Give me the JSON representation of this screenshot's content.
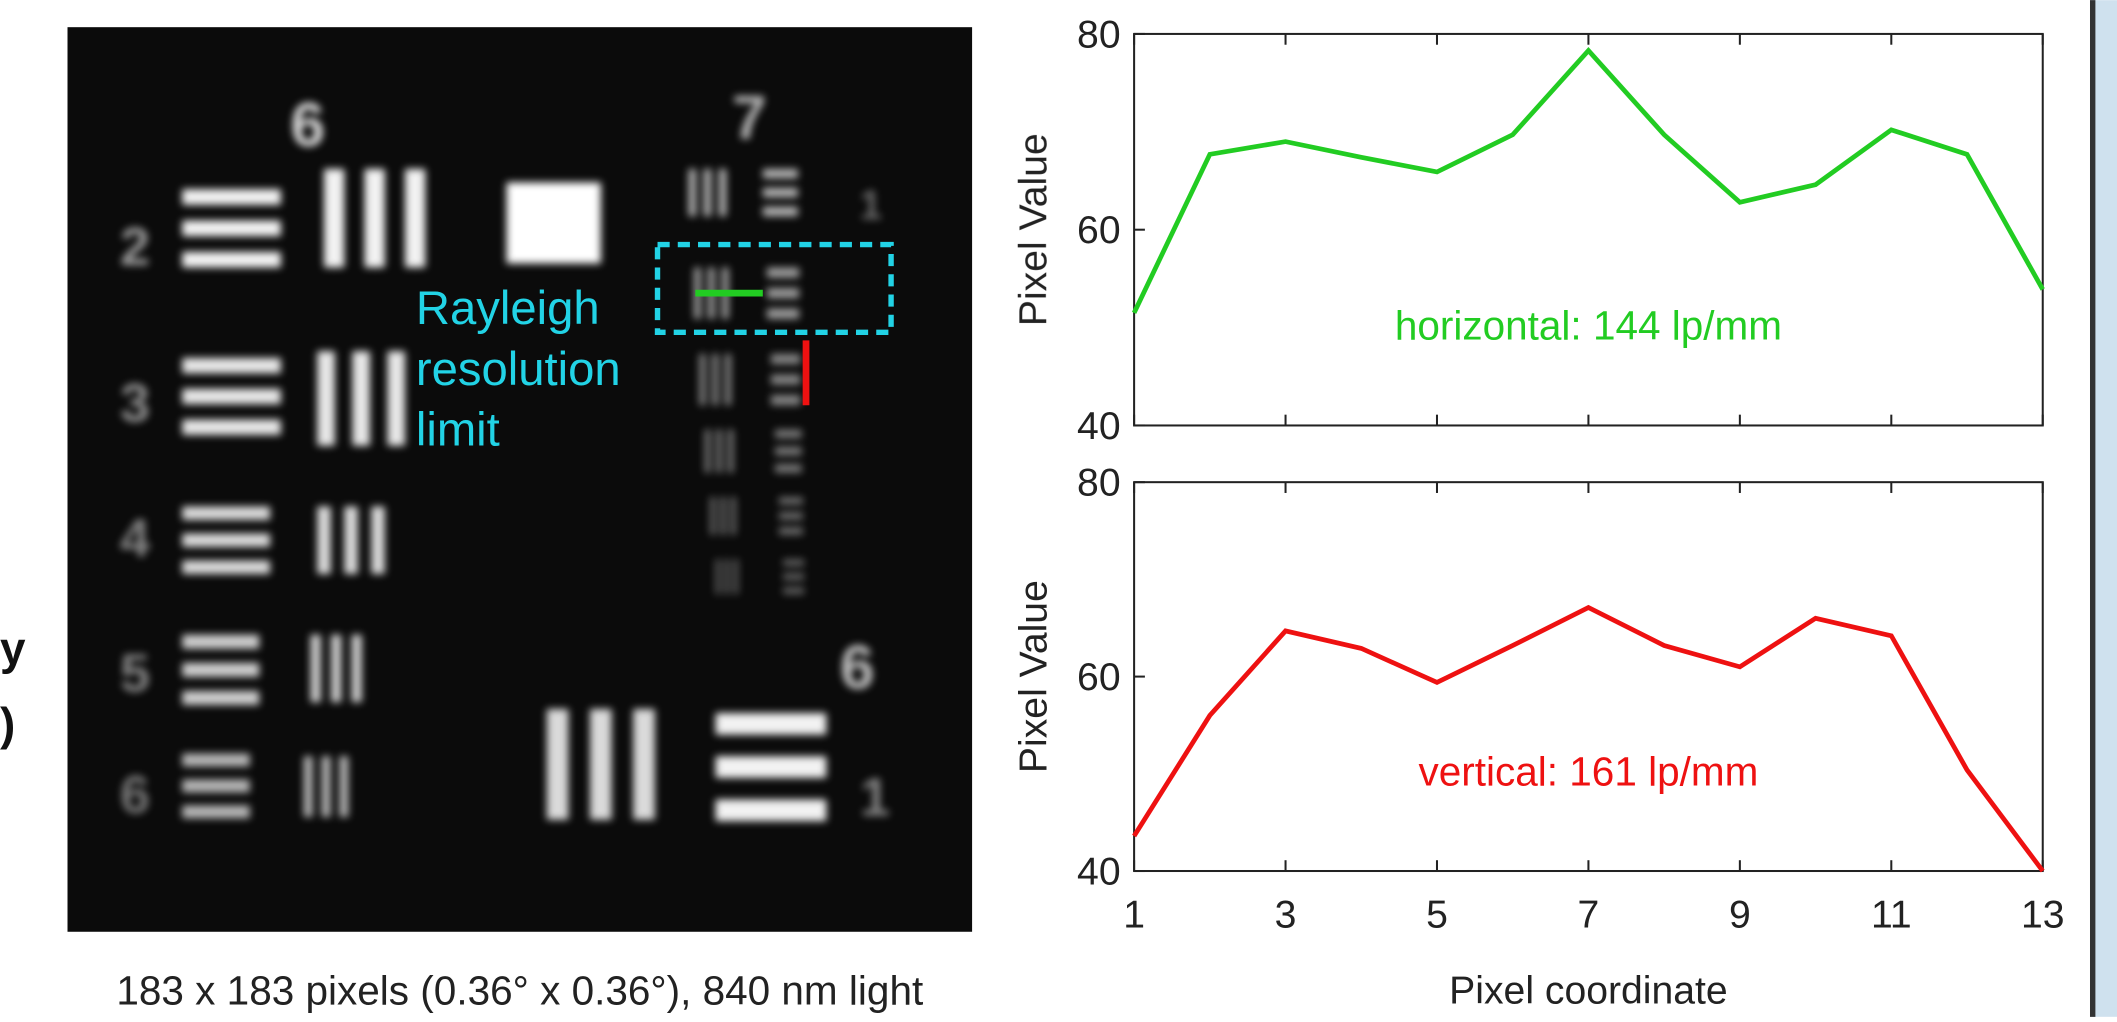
{
  "image": {
    "annotation_lines": [
      "Rayleigh",
      "resolution",
      "limit"
    ],
    "caption": "183 x 183 pixels (0.36° x 0.36°), 840 nm light",
    "target_labels": [
      "6",
      "7",
      "2",
      "3",
      "4",
      "5",
      "6",
      "6",
      "1",
      "1"
    ],
    "cropped_texts": [
      "y",
      ")"
    ]
  },
  "chart_data": [
    {
      "type": "line",
      "ylabel": "Pixel Value",
      "annotation": "horizontal: 144 lp/mm",
      "x": [
        1,
        2,
        3,
        4,
        5,
        6,
        7,
        8,
        9,
        10,
        11,
        12,
        13
      ],
      "series": [
        {
          "color": "#22cc22",
          "values": [
            51.5,
            67.7,
            69,
            67.4,
            65.9,
            69.7,
            78.3,
            69.7,
            62.8,
            64.6,
            70.2,
            67.7,
            53.9
          ]
        }
      ],
      "xlim": [
        1,
        13
      ],
      "xticks": [
        1,
        3,
        5,
        7,
        9,
        11,
        13
      ],
      "show_xtick_labels": false,
      "ylim": [
        40,
        80
      ],
      "yticks": [
        40,
        60,
        80
      ]
    },
    {
      "type": "line",
      "ylabel": "Pixel Value",
      "xlabel": "Pixel coordinate",
      "annotation": "vertical: 161 lp/mm",
      "x": [
        1,
        2,
        3,
        4,
        5,
        6,
        7,
        8,
        9,
        10,
        11,
        12,
        13
      ],
      "series": [
        {
          "color": "#ee1111",
          "values": [
            43.6,
            56,
            64.7,
            62.9,
            59.4,
            63.2,
            67.1,
            63.2,
            61,
            66,
            64.2,
            50.4,
            40
          ]
        }
      ],
      "xlim": [
        1,
        13
      ],
      "xticks": [
        1,
        3,
        5,
        7,
        9,
        11,
        13
      ],
      "show_xtick_labels": true,
      "ylim": [
        40,
        80
      ],
      "yticks": [
        40,
        60,
        80
      ]
    }
  ]
}
